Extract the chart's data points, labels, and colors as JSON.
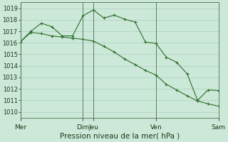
{
  "background_color": "#cce8d8",
  "grid_color": "#a8c8b8",
  "line_color": "#2d6e2d",
  "marker_color": "#2d6e2d",
  "xlabel": "Pression niveau de la mer( hPa )",
  "xlabel_fontsize": 7.5,
  "ylim": [
    1009.5,
    1019.5
  ],
  "yticks": [
    1010,
    1011,
    1012,
    1013,
    1014,
    1015,
    1016,
    1017,
    1018,
    1019
  ],
  "ytick_fontsize": 6,
  "xtick_labels": [
    "Mer",
    "Dim",
    "Jeu",
    "Ven",
    "Sam"
  ],
  "xtick_positions": [
    0,
    6,
    7,
    13,
    19
  ],
  "vline_positions": [
    0,
    6,
    7,
    13,
    19
  ],
  "vline_color": "#507050",
  "line1_x": [
    0,
    1,
    2,
    3,
    4,
    5,
    6,
    7,
    8,
    9,
    10,
    11,
    12,
    13,
    14,
    15,
    16,
    17,
    18,
    19
  ],
  "line1_y": [
    1016.1,
    1016.9,
    1016.8,
    1016.6,
    1016.5,
    1016.4,
    1016.3,
    1016.15,
    1015.7,
    1015.2,
    1014.6,
    1014.1,
    1013.6,
    1013.2,
    1012.4,
    1011.9,
    1011.4,
    1010.95,
    1010.7,
    1010.5
  ],
  "line2_x": [
    0,
    1,
    2,
    3,
    4,
    5,
    6,
    7,
    8,
    9,
    10,
    11,
    12,
    13,
    14,
    15,
    16,
    17,
    18,
    19
  ],
  "line2_y": [
    1016.1,
    1017.0,
    1017.7,
    1017.4,
    1016.6,
    1016.6,
    1018.35,
    1018.85,
    1018.15,
    1018.4,
    1018.05,
    1017.8,
    1016.05,
    1015.95,
    1014.75,
    1014.3,
    1013.3,
    1011.0,
    1011.9,
    1011.85
  ],
  "figsize": [
    3.2,
    2.0
  ],
  "dpi": 100
}
